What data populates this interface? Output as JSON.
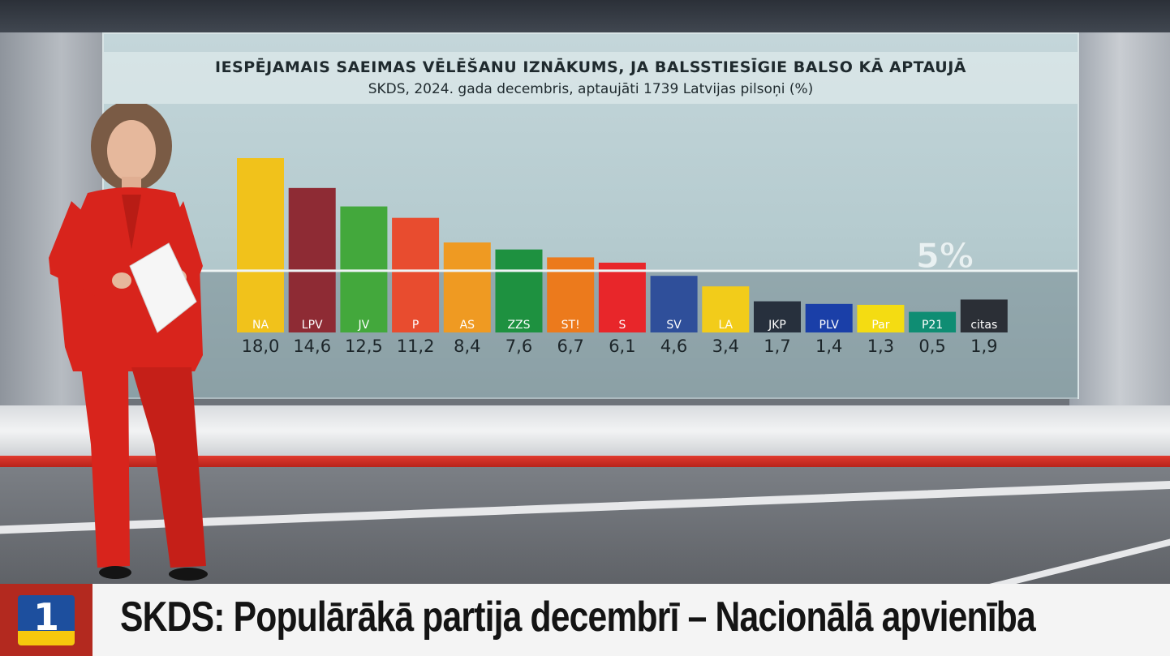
{
  "chart_data": {
    "type": "bar",
    "title": "IESPĒJAMAIS SAEIMAS VĒLĒŠANU IZNĀKUMS, JA BALSSTIESĪGIE BALSO KĀ APTAUJĀ",
    "subtitle": "SKDS, 2024. gada decembris, aptaujāti 1739 Latvijas pilsoņi (%)",
    "categories": [
      "NA",
      "LPV",
      "JV",
      "P",
      "AS",
      "ZZS",
      "ST!",
      "S",
      "SV",
      "LA",
      "JKP",
      "PLV",
      "Par",
      "P21",
      "citas"
    ],
    "values": [
      18.0,
      14.6,
      12.5,
      11.2,
      8.4,
      7.6,
      6.7,
      6.1,
      4.6,
      3.4,
      1.7,
      1.4,
      1.3,
      0.5,
      1.9
    ],
    "value_labels": [
      "18,0",
      "14,6",
      "12,5",
      "11,2",
      "8,4",
      "7,6",
      "6,7",
      "6,1",
      "4,6",
      "3,4",
      "1,7",
      "1,4",
      "1,3",
      "0,5",
      "1,9"
    ],
    "colors": [
      "#f1c21b",
      "#8e2b34",
      "#43a83c",
      "#e84c2f",
      "#ef9a22",
      "#1e9140",
      "#ec7a1c",
      "#e8262a",
      "#2f4f9a",
      "#f2cc1a",
      "#27303d",
      "#1a3fa8",
      "#f4dc12",
      "#0f8d73",
      "#2b2f36"
    ],
    "label_text_colors": [
      "#ffffff",
      "#ffffff",
      "#ffffff",
      "#ffffff",
      "#ffffff",
      "#ffffff",
      "#ffffff",
      "#ffffff",
      "#ffffff",
      "#ffffff",
      "#ffffff",
      "#ffffff",
      "#ffffff",
      "#ffffff",
      "#ffffff"
    ],
    "threshold": 5,
    "threshold_label": "5%",
    "xlabel": "",
    "ylabel": ""
  },
  "lower_third": {
    "headline": "SKDS: Populārākā partija decembrī – Nacionālā apvienība",
    "logo_number": "1"
  }
}
